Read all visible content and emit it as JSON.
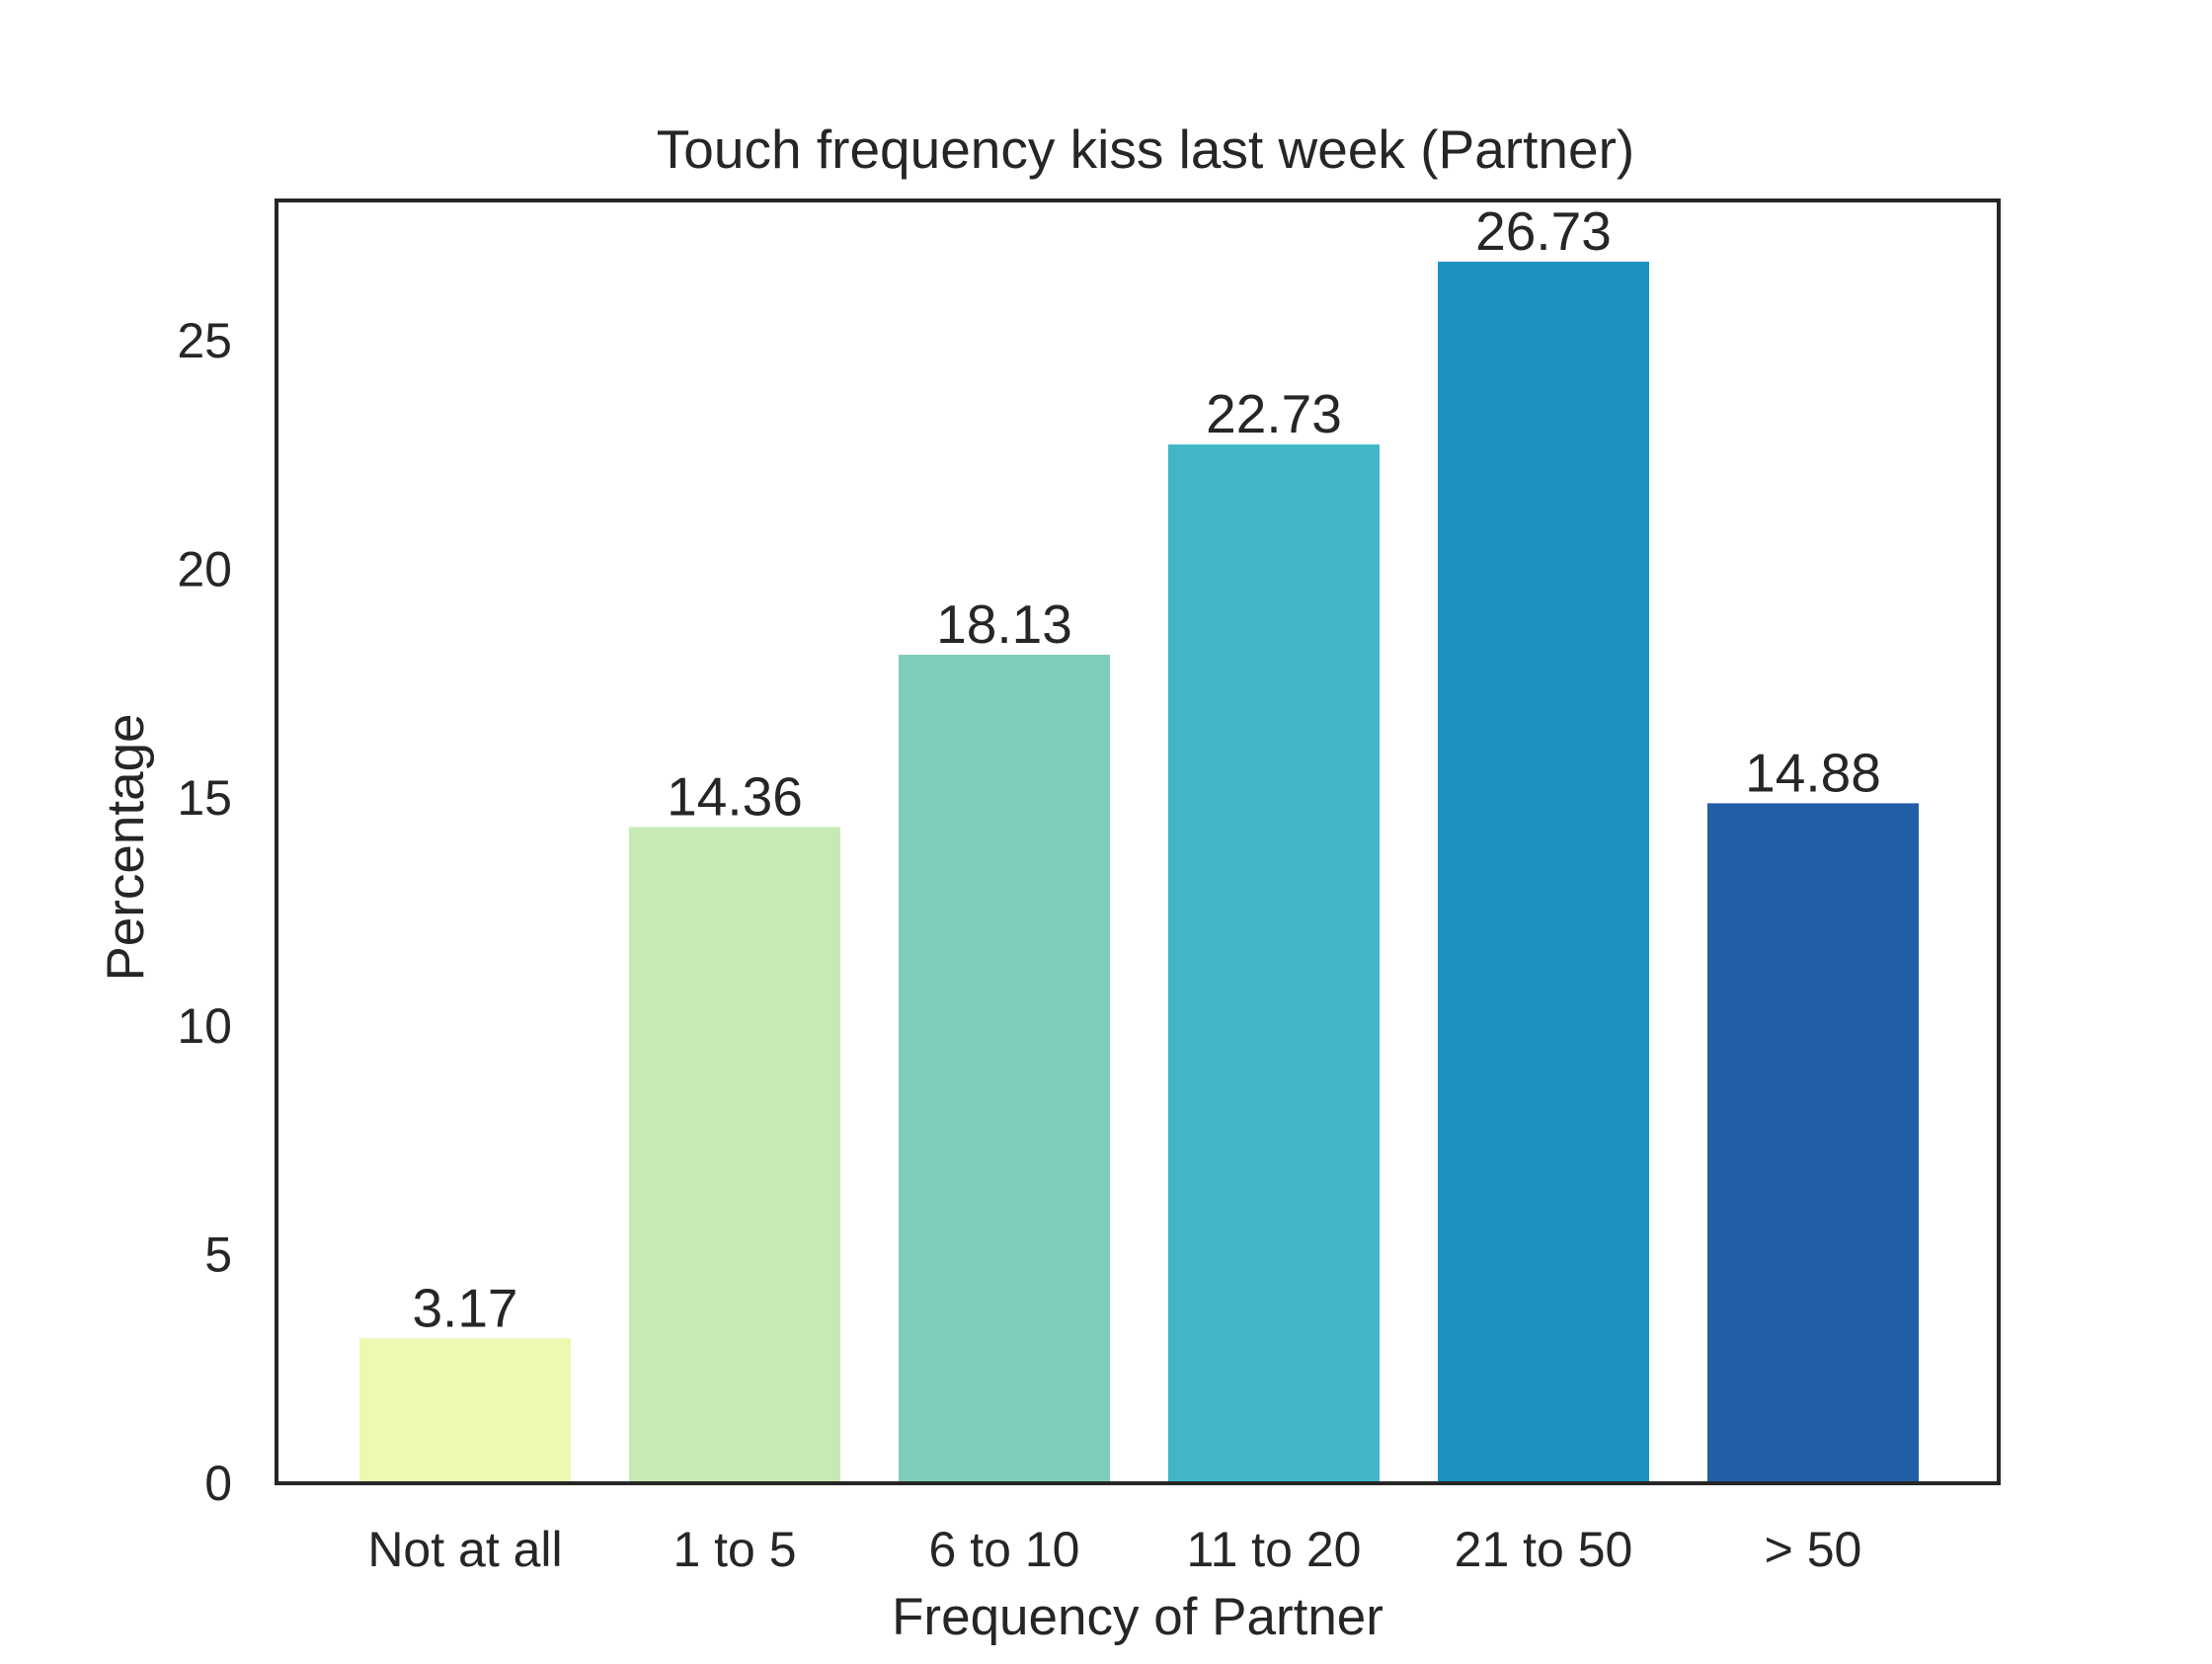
{
  "chart_data": {
    "type": "bar",
    "title": "Touch frequency kiss last week (Partner)",
    "xlabel": "Frequency of Partner",
    "ylabel": "Percentage",
    "categories": [
      "Not at all",
      "1 to 5",
      "6 to 10",
      "11 to 20",
      "21 to 50",
      "> 50"
    ],
    "values": [
      3.17,
      14.36,
      18.13,
      22.73,
      26.73,
      14.88
    ],
    "value_labels": [
      "3.17",
      "14.36",
      "18.13",
      "22.73",
      "26.73",
      "14.88"
    ],
    "colors": [
      "#edf8b1",
      "#c7e9b4",
      "#7fcdbb",
      "#41b6c4",
      "#1d91c0",
      "#225ea8"
    ],
    "yticks": [
      0,
      5,
      10,
      15,
      20,
      25
    ],
    "ytick_labels": [
      "0",
      "5",
      "10",
      "15",
      "20",
      "25"
    ],
    "ylim": [
      0,
      28.07
    ],
    "grid": false,
    "legend": "none"
  }
}
